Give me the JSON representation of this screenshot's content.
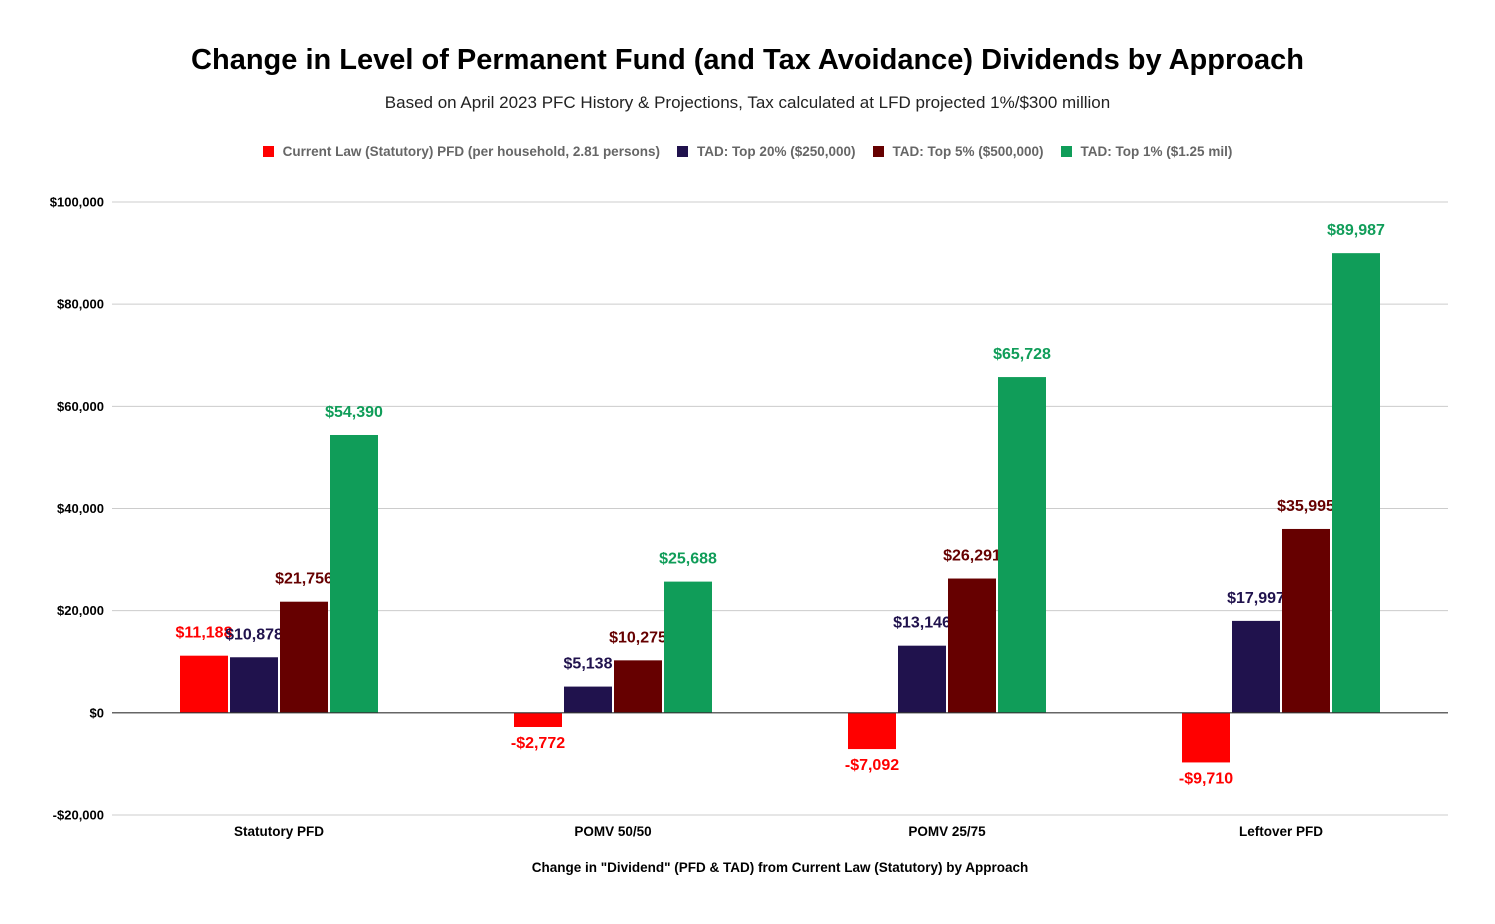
{
  "chart_data": {
    "type": "bar",
    "title": "Change in Level of Permanent Fund (and Tax Avoidance) Dividends by Approach",
    "subtitle": "Based on April 2023 PFC History & Projections, Tax calculated at LFD projected 1%/$300 million",
    "xlabel": "Change in \"Dividend\" (PFD & TAD) from Current Law (Statutory) by Approach",
    "ylabel": "",
    "ylim": [
      -20000,
      100000
    ],
    "yticks": [
      100000,
      80000,
      60000,
      40000,
      20000,
      0,
      -20000
    ],
    "ytick_labels": [
      "$100,000",
      "$80,000",
      "$60,000",
      "$40,000",
      "$20,000",
      "$0",
      "-$20,000"
    ],
    "grid": true,
    "legend_position": "top",
    "categories": [
      "Statutory PFD",
      "POMV 50/50",
      "POMV 25/75",
      "Leftover PFD"
    ],
    "series": [
      {
        "name": "Current Law (Statutory) PFD (per household, 2.81 persons)",
        "color": "#ff0000",
        "values": [
          11188,
          -2772,
          -7092,
          -9710
        ],
        "labels": [
          "$11,188",
          "-$2,772",
          "-$7,092",
          "-$9,710"
        ]
      },
      {
        "name": "TAD: Top 20% ($250,000)",
        "color": "#20124d",
        "values": [
          10878,
          5138,
          13146,
          17997
        ],
        "labels": [
          "$10,878",
          "$5,138",
          "$13,146",
          "$17,997"
        ]
      },
      {
        "name": "TAD: Top 5% ($500,000)",
        "color": "#660000",
        "values": [
          21756,
          10275,
          26291,
          35995
        ],
        "labels": [
          "$21,756",
          "$10,275",
          "$26,291",
          "$35,995"
        ]
      },
      {
        "name": "TAD: Top 1% ($1.25 mil)",
        "color": "#109d59",
        "values": [
          54390,
          25688,
          65728,
          89987
        ],
        "labels": [
          "$54,390",
          "$25,688",
          "$65,728",
          "$89,987"
        ]
      }
    ]
  }
}
